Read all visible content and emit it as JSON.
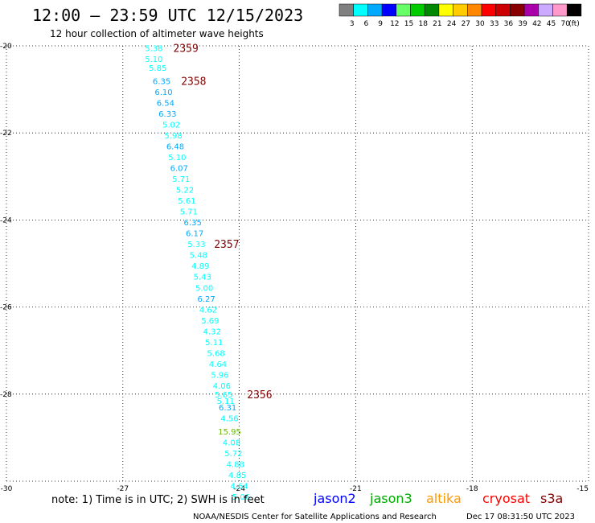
{
  "header": {
    "title": "12:00 – 23:59 UTC 12/15/2023",
    "subtitle": "12 hour collection of altimeter wave heights"
  },
  "legend": {
    "unit": "(ft)",
    "bins": [
      {
        "label": "3",
        "color": "#808080"
      },
      {
        "label": "6",
        "color": "#00ffff"
      },
      {
        "label": "9",
        "color": "#00aaff"
      },
      {
        "label": "12",
        "color": "#0000ff"
      },
      {
        "label": "15",
        "color": "#66ff66"
      },
      {
        "label": "18",
        "color": "#00cc00"
      },
      {
        "label": "21",
        "color": "#008800"
      },
      {
        "label": "24",
        "color": "#ffff00"
      },
      {
        "label": "27",
        "color": "#ffcc00"
      },
      {
        "label": "30",
        "color": "#ff8800"
      },
      {
        "label": "33",
        "color": "#ff0000"
      },
      {
        "label": "36",
        "color": "#cc0000"
      },
      {
        "label": "39",
        "color": "#880000"
      },
      {
        "label": "42",
        "color": "#aa00aa"
      },
      {
        "label": "45",
        "color": "#ccaaff"
      },
      {
        "label": "70",
        "color": "#ff99cc"
      },
      {
        "label": "",
        "color": "#000000"
      }
    ]
  },
  "footer": {
    "note": "note: 1) Time is in UTC; 2) SWH is in feet",
    "satellites": [
      {
        "name": "jason2",
        "color": "#0000ff"
      },
      {
        "name": "jason3",
        "color": "#00aa00"
      },
      {
        "name": "altika",
        "color": "#ff9900"
      },
      {
        "name": "cryosat",
        "color": "#ff0000"
      },
      {
        "name": "s3a",
        "color": "#800000"
      }
    ],
    "credit": "NOAA/NESDIS Center for Satellite Applications and Research",
    "timestamp": "Dec 17 08:31:50 UTC 2023"
  },
  "chart_data": {
    "type": "scatter",
    "title": "12:00 – 23:59 UTC 12/15/2023",
    "subtitle": "12 hour collection of altimeter wave heights",
    "xlabel": "",
    "ylabel": "",
    "xlim": [
      -30,
      -15
    ],
    "ylim": [
      -30,
      -20
    ],
    "x_ticks": [
      -30,
      -27,
      -24,
      -21,
      -18,
      -15
    ],
    "y_ticks": [
      -20,
      -22,
      -24,
      -26,
      -28,
      -30
    ],
    "grid": true,
    "points": [
      {
        "lon": -26.2,
        "lat": -20.05,
        "swh": "5.38",
        "color": "#00ffff"
      },
      {
        "lon": -26.2,
        "lat": -20.3,
        "swh": "5.10",
        "color": "#00ffff"
      },
      {
        "lon": -26.1,
        "lat": -20.5,
        "swh": "5.85",
        "color": "#00ffff"
      },
      {
        "lon": -26.0,
        "lat": -20.8,
        "swh": "6.35",
        "color": "#00aaff"
      },
      {
        "lon": -25.95,
        "lat": -21.05,
        "swh": "6.10",
        "color": "#00aaff"
      },
      {
        "lon": -25.9,
        "lat": -21.3,
        "swh": "6.54",
        "color": "#00aaff"
      },
      {
        "lon": -25.85,
        "lat": -21.55,
        "swh": "6.33",
        "color": "#00aaff"
      },
      {
        "lon": -25.75,
        "lat": -21.8,
        "swh": "5.02",
        "color": "#00ffff"
      },
      {
        "lon": -25.7,
        "lat": -22.05,
        "swh": "5.98",
        "color": "#00ffff"
      },
      {
        "lon": -25.65,
        "lat": -22.3,
        "swh": "6.48",
        "color": "#00aaff"
      },
      {
        "lon": -25.6,
        "lat": -22.55,
        "swh": "5.10",
        "color": "#00ffff"
      },
      {
        "lon": -25.55,
        "lat": -22.8,
        "swh": "6.07",
        "color": "#00aaff"
      },
      {
        "lon": -25.5,
        "lat": -23.05,
        "swh": "5.71",
        "color": "#00ffff"
      },
      {
        "lon": -25.4,
        "lat": -23.3,
        "swh": "5.22",
        "color": "#00ffff"
      },
      {
        "lon": -25.35,
        "lat": -23.55,
        "swh": "5.61",
        "color": "#00ffff"
      },
      {
        "lon": -25.3,
        "lat": -23.8,
        "swh": "5.71",
        "color": "#00ffff"
      },
      {
        "lon": -25.2,
        "lat": -24.05,
        "swh": "6.35",
        "color": "#00aaff"
      },
      {
        "lon": -25.15,
        "lat": -24.3,
        "swh": "6.17",
        "color": "#00aaff"
      },
      {
        "lon": -25.1,
        "lat": -24.55,
        "swh": "5.33",
        "color": "#00ffff"
      },
      {
        "lon": -25.05,
        "lat": -24.8,
        "swh": "5.48",
        "color": "#00ffff"
      },
      {
        "lon": -25.0,
        "lat": -25.05,
        "swh": "4.89",
        "color": "#00ffff"
      },
      {
        "lon": -24.95,
        "lat": -25.3,
        "swh": "5.43",
        "color": "#00ffff"
      },
      {
        "lon": -24.9,
        "lat": -25.55,
        "swh": "5.00",
        "color": "#00ffff"
      },
      {
        "lon": -24.85,
        "lat": -25.8,
        "swh": "6.27",
        "color": "#00aaff"
      },
      {
        "lon": -24.8,
        "lat": -26.05,
        "swh": "4.62",
        "color": "#00ffff"
      },
      {
        "lon": -24.75,
        "lat": -26.3,
        "swh": "5.69",
        "color": "#00ffff"
      },
      {
        "lon": -24.7,
        "lat": -26.55,
        "swh": "4.32",
        "color": "#00ffff"
      },
      {
        "lon": -24.65,
        "lat": -26.8,
        "swh": "5.11",
        "color": "#00ffff"
      },
      {
        "lon": -24.6,
        "lat": -27.05,
        "swh": "5.68",
        "color": "#00ffff"
      },
      {
        "lon": -24.55,
        "lat": -27.3,
        "swh": "4.64",
        "color": "#00ffff"
      },
      {
        "lon": -24.5,
        "lat": -27.55,
        "swh": "5.96",
        "color": "#00ffff"
      },
      {
        "lon": -24.45,
        "lat": -27.8,
        "swh": "4.06",
        "color": "#00ffff"
      },
      {
        "lon": -24.4,
        "lat": -28.0,
        "swh": "5.65",
        "color": "#00ffff"
      },
      {
        "lon": -24.35,
        "lat": -28.15,
        "swh": "5.11",
        "color": "#00ffff"
      },
      {
        "lon": -24.3,
        "lat": -28.3,
        "swh": "6.31",
        "color": "#00aaff"
      },
      {
        "lon": -24.25,
        "lat": -28.55,
        "swh": "4.56",
        "color": "#00ffff"
      },
      {
        "lon": -24.25,
        "lat": -28.85,
        "swh": "15.95",
        "color": "#66bb00"
      },
      {
        "lon": -24.2,
        "lat": -29.1,
        "swh": "4.08",
        "color": "#00ffff"
      },
      {
        "lon": -24.15,
        "lat": -29.35,
        "swh": "5.72",
        "color": "#00ffff"
      },
      {
        "lon": -24.1,
        "lat": -29.6,
        "swh": "4.88",
        "color": "#00ffff"
      },
      {
        "lon": -24.05,
        "lat": -29.85,
        "swh": "4.85",
        "color": "#00ffff"
      },
      {
        "lon": -24.0,
        "lat": -30.1,
        "swh": "4.64",
        "color": "#00ffff"
      },
      {
        "lon": -23.95,
        "lat": -30.35,
        "swh": "5.06",
        "color": "#00ffff"
      }
    ],
    "pass_labels": [
      {
        "text": "2359",
        "lon": -25.7,
        "lat": -20.05
      },
      {
        "text": "2358",
        "lon": -25.5,
        "lat": -20.8
      },
      {
        "text": "2357",
        "lon": -24.65,
        "lat": -24.55
      },
      {
        "text": "2356",
        "lon": -23.8,
        "lat": -28.0
      }
    ]
  }
}
